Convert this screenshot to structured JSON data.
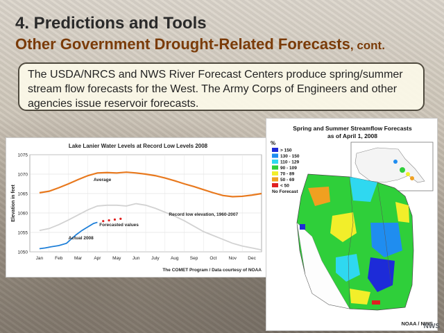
{
  "slide": {
    "title_line1": "4. Predictions and Tools",
    "title_line2": "Other Government Drought-Related Forecasts",
    "title_line2_suffix": ", cont.",
    "body_text": "The USDA/NRCS and NWS River Forecast Centers produce spring/summer stream flow forecasts for the West. The Army Corps of Engineers and other agencies issue reservoir forecasts."
  },
  "chart_data": {
    "type": "line",
    "title": "Lake Lanier Water Levels at Record Low Levels 2008",
    "ylabel": "Elevation in feet",
    "xlabel": "",
    "categories": [
      "Jan",
      "Feb",
      "Mar",
      "Apr",
      "May",
      "Jun",
      "July",
      "Aug",
      "Sep",
      "Oct",
      "Nov",
      "Dec"
    ],
    "ylim": [
      1050,
      1075
    ],
    "yticks": [
      "1050",
      "1055",
      "1060",
      "1065",
      "1070",
      "1075"
    ],
    "grid": true,
    "credit": "The COMET Program / Data courtesy of NOAA",
    "series": [
      {
        "name": "Average",
        "color": "#e8791e",
        "style": "solid",
        "x": [
          0,
          0.5,
          1,
          1.5,
          2,
          2.5,
          3,
          3.5,
          4,
          4.5,
          5,
          5.5,
          6,
          6.5,
          7,
          7.5,
          8,
          8.5,
          9,
          9.5,
          10,
          10.5,
          11,
          11.5
        ],
        "values": [
          1065.2,
          1065.6,
          1066.5,
          1067.5,
          1068.6,
          1069.6,
          1070.3,
          1070.4,
          1070.3,
          1070.5,
          1070.3,
          1070.0,
          1069.6,
          1069.0,
          1068.3,
          1067.5,
          1066.8,
          1066.0,
          1065.2,
          1064.5,
          1064.2,
          1064.3,
          1064.6,
          1065.0
        ]
      },
      {
        "name": "Record low elevation, 1960-2007",
        "color": "#d2d2d2",
        "style": "solid",
        "x": [
          0,
          0.5,
          1,
          1.5,
          2,
          2.5,
          3,
          3.5,
          4,
          4.5,
          5,
          5.5,
          6,
          6.5,
          7,
          7.5,
          8,
          8.5,
          9,
          9.5,
          10,
          10.5,
          11,
          11.5
        ],
        "values": [
          1055.5,
          1056.0,
          1057.0,
          1058.2,
          1059.5,
          1060.8,
          1061.8,
          1062.0,
          1062.0,
          1061.8,
          1062.4,
          1062.0,
          1061.2,
          1060.2,
          1059.2,
          1058.0,
          1056.6,
          1055.2,
          1054.2,
          1053.2,
          1052.2,
          1051.5,
          1051.0,
          1050.5
        ]
      },
      {
        "name": "Actual 2008",
        "color": "#1e7fd8",
        "style": "solid",
        "x": [
          0,
          0.3,
          0.6,
          1.0,
          1.4,
          1.6,
          1.9,
          2.2,
          2.5,
          2.8,
          3.0
        ],
        "values": [
          1050.8,
          1051.0,
          1051.3,
          1051.6,
          1052.2,
          1053.1,
          1054.4,
          1055.5,
          1056.4,
          1057.3,
          1057.6
        ]
      },
      {
        "name": "Forecasted values",
        "color": "#e0201e",
        "style": "dotted",
        "x": [
          3.0,
          3.3,
          3.6,
          3.9,
          4.2
        ],
        "values": [
          1057.6,
          1057.9,
          1058.1,
          1058.3,
          1058.5
        ]
      }
    ],
    "labels": {
      "average": "Average",
      "record": "Record low elevation, 1960-2007",
      "actual": "Actual 2008",
      "forecast": "Forecasted values"
    }
  },
  "map": {
    "title_line1": "Spring and Summer Streamflow Forecasts",
    "title_line2": "as of April 1, 2008",
    "legend_unit": "%",
    "legend": [
      {
        "label": "> 150",
        "color": "#1d2bd8"
      },
      {
        "label": "130 - 150",
        "color": "#1f8df0"
      },
      {
        "label": "110 - 129",
        "color": "#2fd8f0"
      },
      {
        "label": "90 - 109",
        "color": "#2fcf3a"
      },
      {
        "label": "70 - 89",
        "color": "#f2ee2a"
      },
      {
        "label": "50 - 69",
        "color": "#f0a020"
      },
      {
        "label": "< 50",
        "color": "#e02020"
      },
      {
        "label": "No Forecast",
        "color": "#ffffff"
      }
    ],
    "credit": "NOAA / NWS",
    "watermark": "NWS"
  }
}
